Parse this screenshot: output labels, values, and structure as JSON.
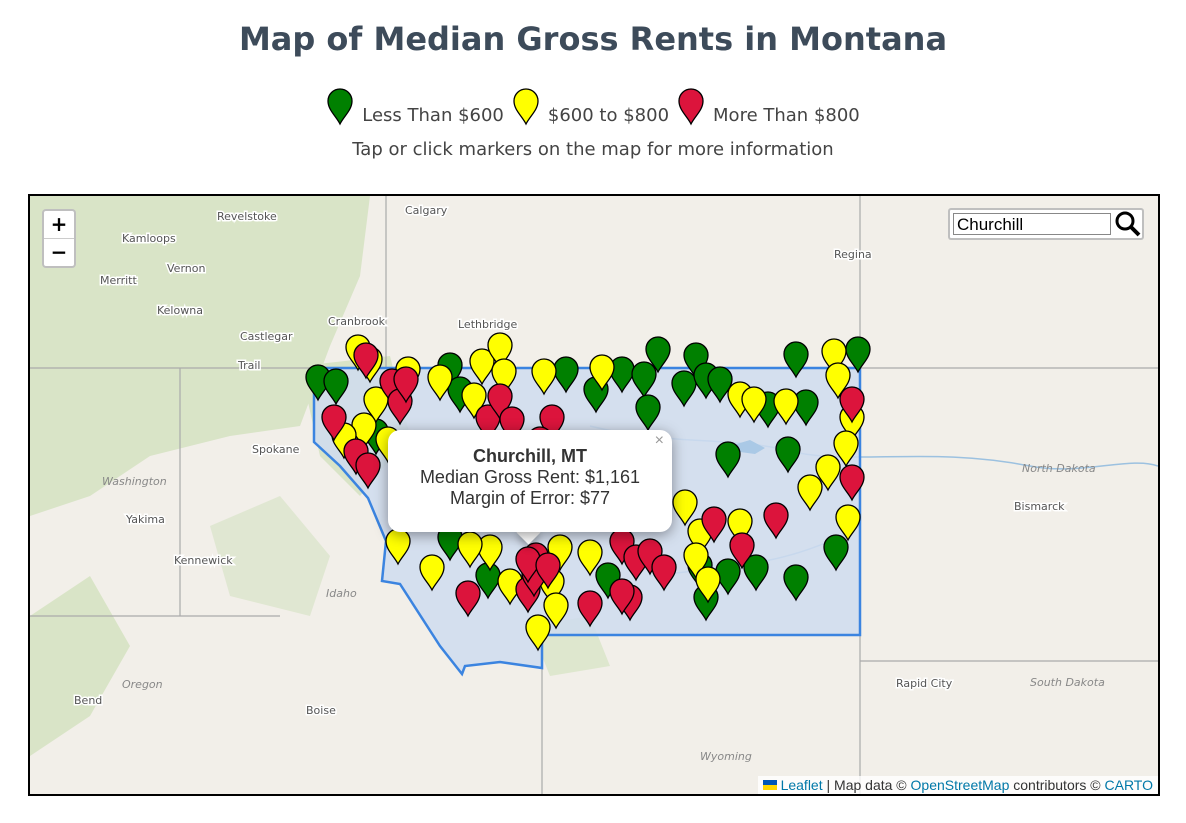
{
  "header": {
    "title": "Map of Median Gross Rents in Montana"
  },
  "legend": [
    "Less Than $600",
    "$600 to $800",
    "More Than $800"
  ],
  "hint": "Tap or click markers on the map for more information",
  "zoom": {
    "in": "+",
    "out": "−"
  },
  "search": {
    "value": "Churchill"
  },
  "popup": {
    "title": "Churchill, MT",
    "rent": "Median Gross Rent: $1,161",
    "error": "Margin of Error: $77",
    "close": "×"
  },
  "attribution": {
    "leaflet": "Leaflet",
    "text1": "| Map data ©",
    "osm": "OpenStreetMap",
    "text2": "contributors ©",
    "carto": "CARTO"
  },
  "places": [
    "Calgary",
    "Regina",
    "Revelstoke",
    "Kamloops",
    "Vernon",
    "Merritt",
    "Kelowna",
    "Castlegar",
    "Trail",
    "Cranbrook",
    "Lethbridge",
    "Spokane",
    "Yakima",
    "Kennewick",
    "Boise",
    "Bend",
    "Rapid City",
    "Bismarck",
    "Washington",
    "Idaho",
    "Oregon",
    "Wyoming",
    "North Dakota",
    "South Dakota"
  ]
}
